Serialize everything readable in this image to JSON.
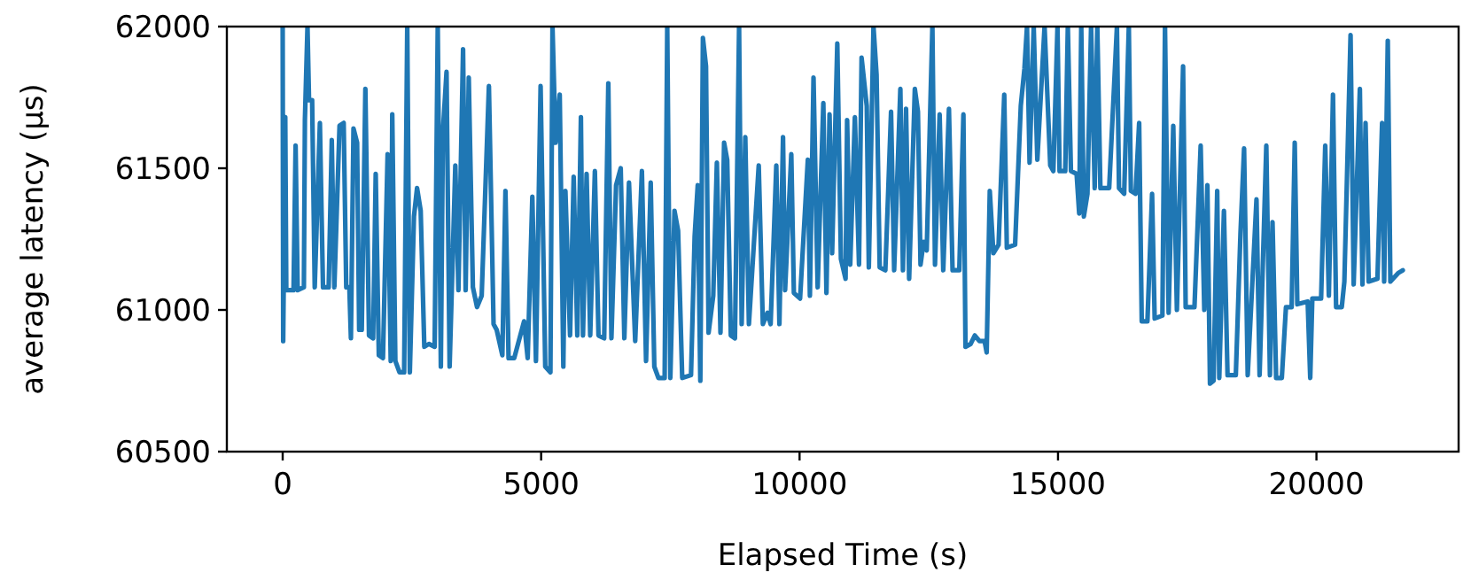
{
  "chart_data": {
    "type": "line",
    "xlabel": "Elapsed Time (s)",
    "ylabel": "average latency (µs)",
    "xlim": [
      -1080,
      22750
    ],
    "ylim": [
      60500,
      62000
    ],
    "xticks": [
      0,
      5000,
      10000,
      15000,
      20000
    ],
    "yticks": [
      60500,
      61000,
      61500,
      62000
    ],
    "grid": false,
    "marker": "none",
    "line_style": "solid",
    "series": [
      {
        "color": "#1f77b4",
        "x": [
          0,
          10,
          50,
          70,
          210,
          250,
          290,
          410,
          430,
          480,
          510,
          570,
          620,
          720,
          780,
          890,
          950,
          1000,
          1100,
          1180,
          1230,
          1290,
          1320,
          1370,
          1440,
          1480,
          1530,
          1600,
          1670,
          1750,
          1800,
          1860,
          1940,
          2030,
          2090,
          2120,
          2180,
          2260,
          2350,
          2410,
          2460,
          2540,
          2600,
          2670,
          2740,
          2830,
          2940,
          3000,
          3060,
          3100,
          3170,
          3230,
          3340,
          3400,
          3490,
          3540,
          3600,
          3680,
          3760,
          3850,
          3990,
          4080,
          4140,
          4250,
          4310,
          4370,
          4480,
          4670,
          4740,
          4830,
          4900,
          4990,
          5080,
          5180,
          5220,
          5280,
          5360,
          5430,
          5470,
          5560,
          5630,
          5700,
          5770,
          5810,
          5880,
          5950,
          6040,
          6110,
          6220,
          6300,
          6360,
          6450,
          6540,
          6610,
          6700,
          6820,
          6950,
          7030,
          7120,
          7190,
          7270,
          7390,
          7440,
          7500,
          7580,
          7650,
          7730,
          7900,
          7970,
          8030,
          8080,
          8130,
          8190,
          8240,
          8330,
          8400,
          8470,
          8540,
          8600,
          8670,
          8750,
          8830,
          8880,
          8950,
          9020,
          9210,
          9290,
          9380,
          9440,
          9550,
          9610,
          9680,
          9720,
          9840,
          9890,
          10010,
          10160,
          10200,
          10270,
          10350,
          10460,
          10520,
          10580,
          10630,
          10730,
          10800,
          10890,
          10920,
          10980,
          11070,
          11150,
          11200,
          11300,
          11340,
          11430,
          11490,
          11550,
          11660,
          11770,
          11830,
          11950,
          12000,
          12060,
          12120,
          12230,
          12290,
          12340,
          12400,
          12460,
          12530,
          12570,
          12620,
          12710,
          12780,
          12890,
          12960,
          13090,
          13170,
          13210,
          13310,
          13390,
          13480,
          13580,
          13620,
          13680,
          13750,
          13850,
          13960,
          14010,
          14170,
          14280,
          14350,
          14400,
          14450,
          14530,
          14600,
          14740,
          14850,
          14910,
          14990,
          15030,
          15140,
          15190,
          15250,
          15360,
          15410,
          15450,
          15500,
          15570,
          15640,
          15710,
          15760,
          15820,
          15990,
          16140,
          16180,
          16280,
          16370,
          16410,
          16500,
          16570,
          16620,
          16730,
          16820,
          16870,
          17020,
          17070,
          17140,
          17230,
          17300,
          17420,
          17470,
          17640,
          17760,
          17830,
          17890,
          17940,
          18010,
          18080,
          18120,
          18210,
          18280,
          18440,
          18530,
          18600,
          18670,
          18840,
          18900,
          19030,
          19100,
          19150,
          19220,
          19330,
          19410,
          19520,
          19580,
          19630,
          19830,
          19880,
          19920,
          20090,
          20170,
          20240,
          20320,
          20380,
          20490,
          20540,
          20660,
          20720,
          20840,
          20890,
          20950,
          21010,
          21180,
          21270,
          21310,
          21380,
          21430,
          21580,
          21670
        ],
        "values": [
          62000,
          60890,
          61680,
          61070,
          61070,
          61580,
          61070,
          61080,
          61670,
          62000,
          61740,
          61740,
          61080,
          61660,
          61080,
          61080,
          61600,
          61080,
          61650,
          61660,
          61080,
          61080,
          60900,
          61640,
          61590,
          60930,
          60930,
          61780,
          60910,
          60900,
          61480,
          60840,
          60830,
          61550,
          60820,
          61690,
          60820,
          60780,
          60780,
          62000,
          60780,
          61330,
          61430,
          61350,
          60870,
          60880,
          60870,
          62000,
          60800,
          61630,
          61840,
          60800,
          61510,
          61070,
          61920,
          61070,
          61820,
          61080,
          61010,
          61050,
          61790,
          60950,
          60930,
          60840,
          61420,
          60830,
          60830,
          60960,
          60830,
          61400,
          60820,
          61790,
          60800,
          60780,
          62000,
          61590,
          61760,
          60800,
          61420,
          60910,
          61470,
          60910,
          61680,
          60910,
          61480,
          60910,
          61490,
          60910,
          60900,
          61800,
          60900,
          61440,
          61500,
          60900,
          61450,
          60890,
          61490,
          60820,
          61450,
          60800,
          60760,
          60760,
          62000,
          60760,
          61350,
          61280,
          60760,
          60770,
          61260,
          61440,
          60750,
          61960,
          61860,
          60920,
          61050,
          61520,
          60920,
          61590,
          61530,
          60910,
          60900,
          62000,
          60950,
          61610,
          60950,
          61510,
          60950,
          60990,
          60950,
          61510,
          60950,
          61610,
          61070,
          61550,
          61060,
          61040,
          61530,
          61050,
          61820,
          61080,
          61730,
          61060,
          61690,
          61200,
          61940,
          61180,
          61110,
          61670,
          61160,
          61680,
          61160,
          61890,
          61720,
          61150,
          62000,
          61830,
          61150,
          61140,
          61700,
          61140,
          61780,
          61140,
          61710,
          61110,
          61780,
          61700,
          61160,
          61240,
          61210,
          61720,
          62000,
          61160,
          61690,
          61140,
          61710,
          61140,
          61140,
          61690,
          60870,
          60880,
          60910,
          60890,
          60890,
          60850,
          61420,
          61200,
          61230,
          61760,
          61220,
          61230,
          61720,
          61850,
          62000,
          61520,
          62000,
          61530,
          62000,
          61510,
          61490,
          62000,
          61490,
          61490,
          62000,
          61490,
          61480,
          61340,
          62000,
          61330,
          61410,
          62000,
          61430,
          62000,
          61430,
          61430,
          62000,
          61430,
          61410,
          62000,
          61420,
          61410,
          61660,
          60960,
          60960,
          61410,
          60970,
          60980,
          62000,
          60990,
          61650,
          61000,
          61860,
          61010,
          61010,
          61580,
          61000,
          61440,
          60740,
          60750,
          61420,
          60760,
          61350,
          60770,
          60770,
          61270,
          61570,
          60770,
          61390,
          60770,
          61580,
          60770,
          61310,
          60760,
          60760,
          61010,
          61010,
          61590,
          61020,
          61030,
          60760,
          61040,
          61040,
          61580,
          61050,
          61760,
          61010,
          61010,
          61100,
          61970,
          61090,
          61780,
          61090,
          61660,
          61100,
          61110,
          61660,
          61100,
          61950,
          61100,
          61130,
          61140
        ]
      }
    ]
  }
}
